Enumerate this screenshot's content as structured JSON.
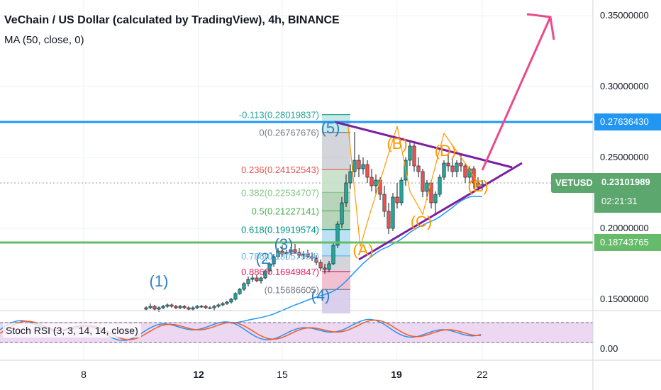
{
  "header": {
    "title": "VeChain / US Dollar (calculated by TradingView), 4h, BINANCE",
    "indicator": "MA (50, close, 0)"
  },
  "oscillator": {
    "label": "Stoch RSI (3, 3, 14, 14, close)",
    "axis_label": "0.00"
  },
  "price_axis": {
    "ticks": [
      "0.35000000",
      "0.30000000",
      "0.25000000",
      "0.20000000",
      "0.15000000"
    ],
    "resistance_label": "0.27636430",
    "support_label": "0.18743765",
    "symbol_tag": "VETUSD",
    "last_price": "0.23101989",
    "countdown": "02:21:31"
  },
  "time_axis": {
    "labels": [
      "8",
      "12",
      "15",
      "19",
      "22"
    ]
  },
  "colors": {
    "candle_up": "#26a69a",
    "candle_down": "#ef5350",
    "ma": "#2196f3",
    "resistance": "#2196f3",
    "support": "#66bb6a",
    "triangle": "#7b1fa2",
    "wave": "#ff9800",
    "arrow": "#e84c8b",
    "last_price": "#5ba76d",
    "stoch_bg": "#e1bee7"
  },
  "chart_data": {
    "type": "candlestick",
    "symbol": "VETUSD",
    "timeframe": "4h",
    "exchange": "BINANCE",
    "ylim": [
      0.14,
      0.365
    ],
    "y_ticks": [
      0.15,
      0.2,
      0.25,
      0.3,
      0.35
    ],
    "x_ticks": [
      "8",
      "12",
      "15",
      "19",
      "22"
    ],
    "resistance": 0.2763643,
    "support": 0.18743765,
    "last_price": 0.23101989,
    "fibonacci": [
      {
        "label": "-0.113(0.28019837)",
        "level": -0.113,
        "price": 0.28019837,
        "color": "#26a69a"
      },
      {
        "label": "0(0.26767676)",
        "level": 0,
        "price": 0.26767676,
        "color": "#787b86"
      },
      {
        "label": "0.236(0.24152543)",
        "level": 0.236,
        "price": 0.24152543,
        "color": "#ef5350"
      },
      {
        "label": "0.382(0.22534707)",
        "level": 0.382,
        "price": 0.22534707,
        "color": "#81c784"
      },
      {
        "label": "0.5(0.21227141)",
        "level": 0.5,
        "price": 0.21227141,
        "color": "#4caf50"
      },
      {
        "label": "0.618(0.19919574)",
        "level": 0.618,
        "price": 0.19919574,
        "color": "#009688"
      },
      {
        "label": "0.786(0.18057954)",
        "level": 0.786,
        "price": 0.18057954,
        "color": "#64b5f6"
      },
      {
        "label": "0.886(0.16949847)",
        "level": 0.886,
        "price": 0.16949847,
        "color": "#e91e63"
      },
      {
        "label": "(0.15686605)",
        "level": 1,
        "price": 0.15686605,
        "color": "#787b86"
      }
    ],
    "impulse_waves": [
      {
        "label": "(1)",
        "price": 0.162
      },
      {
        "label": "(2)",
        "price": 0.178
      },
      {
        "label": "(3)",
        "price": 0.188
      },
      {
        "label": "(4)",
        "price": 0.152
      },
      {
        "label": "(5)",
        "price": 0.27
      }
    ],
    "triangle_waves": [
      {
        "label": "(A)",
        "price": 0.184
      },
      {
        "label": "(B)",
        "price": 0.259
      },
      {
        "label": "(C)",
        "price": 0.204
      },
      {
        "label": "(D)",
        "price": 0.254
      },
      {
        "label": "(E)",
        "price": 0.229
      }
    ],
    "candles": [
      [
        0.143,
        0.145,
        0.142,
        0.144
      ],
      [
        0.144,
        0.147,
        0.143,
        0.145
      ],
      [
        0.145,
        0.146,
        0.142,
        0.143
      ],
      [
        0.143,
        0.145,
        0.141,
        0.144
      ],
      [
        0.144,
        0.146,
        0.143,
        0.145
      ],
      [
        0.145,
        0.147,
        0.144,
        0.146
      ],
      [
        0.146,
        0.147,
        0.144,
        0.145
      ],
      [
        0.145,
        0.146,
        0.143,
        0.144
      ],
      [
        0.144,
        0.146,
        0.143,
        0.145
      ],
      [
        0.145,
        0.146,
        0.143,
        0.144
      ],
      [
        0.144,
        0.145,
        0.142,
        0.143
      ],
      [
        0.143,
        0.145,
        0.142,
        0.144
      ],
      [
        0.144,
        0.146,
        0.143,
        0.145
      ],
      [
        0.145,
        0.146,
        0.144,
        0.145
      ],
      [
        0.145,
        0.146,
        0.143,
        0.144
      ],
      [
        0.144,
        0.145,
        0.143,
        0.144
      ],
      [
        0.144,
        0.146,
        0.142,
        0.145
      ],
      [
        0.145,
        0.147,
        0.144,
        0.146
      ],
      [
        0.146,
        0.148,
        0.145,
        0.147
      ],
      [
        0.147,
        0.149,
        0.146,
        0.148
      ],
      [
        0.148,
        0.151,
        0.147,
        0.15
      ],
      [
        0.15,
        0.155,
        0.149,
        0.154
      ],
      [
        0.154,
        0.158,
        0.153,
        0.157
      ],
      [
        0.157,
        0.162,
        0.156,
        0.161
      ],
      [
        0.161,
        0.166,
        0.159,
        0.164
      ],
      [
        0.164,
        0.168,
        0.162,
        0.165
      ],
      [
        0.165,
        0.167,
        0.162,
        0.163
      ],
      [
        0.163,
        0.166,
        0.161,
        0.165
      ],
      [
        0.165,
        0.171,
        0.164,
        0.17
      ],
      [
        0.17,
        0.176,
        0.168,
        0.175
      ],
      [
        0.175,
        0.182,
        0.173,
        0.18
      ],
      [
        0.18,
        0.186,
        0.178,
        0.184
      ],
      [
        0.184,
        0.188,
        0.18,
        0.182
      ],
      [
        0.182,
        0.185,
        0.178,
        0.183
      ],
      [
        0.183,
        0.187,
        0.181,
        0.185
      ],
      [
        0.185,
        0.189,
        0.182,
        0.183
      ],
      [
        0.183,
        0.186,
        0.179,
        0.181
      ],
      [
        0.181,
        0.184,
        0.178,
        0.182
      ],
      [
        0.182,
        0.185,
        0.179,
        0.18
      ],
      [
        0.18,
        0.183,
        0.177,
        0.179
      ],
      [
        0.179,
        0.181,
        0.174,
        0.176
      ],
      [
        0.176,
        0.178,
        0.17,
        0.172
      ],
      [
        0.172,
        0.175,
        0.168,
        0.171
      ],
      [
        0.171,
        0.177,
        0.169,
        0.175
      ],
      [
        0.175,
        0.19,
        0.174,
        0.188
      ],
      [
        0.188,
        0.205,
        0.186,
        0.203
      ],
      [
        0.203,
        0.222,
        0.2,
        0.218
      ],
      [
        0.218,
        0.238,
        0.215,
        0.232
      ],
      [
        0.232,
        0.245,
        0.228,
        0.24
      ],
      [
        0.24,
        0.268,
        0.236,
        0.248
      ],
      [
        0.248,
        0.252,
        0.236,
        0.242
      ],
      [
        0.242,
        0.25,
        0.238,
        0.245
      ],
      [
        0.245,
        0.248,
        0.232,
        0.236
      ],
      [
        0.236,
        0.242,
        0.226,
        0.23
      ],
      [
        0.23,
        0.238,
        0.224,
        0.234
      ],
      [
        0.234,
        0.236,
        0.22,
        0.224
      ],
      [
        0.224,
        0.23,
        0.208,
        0.212
      ],
      [
        0.212,
        0.218,
        0.196,
        0.2
      ],
      [
        0.2,
        0.225,
        0.198,
        0.222
      ],
      [
        0.222,
        0.232,
        0.214,
        0.218
      ],
      [
        0.218,
        0.236,
        0.216,
        0.234
      ],
      [
        0.234,
        0.25,
        0.23,
        0.248
      ],
      [
        0.248,
        0.262,
        0.244,
        0.258
      ],
      [
        0.258,
        0.26,
        0.24,
        0.244
      ],
      [
        0.244,
        0.25,
        0.236,
        0.24
      ],
      [
        0.24,
        0.242,
        0.222,
        0.226
      ],
      [
        0.226,
        0.234,
        0.22,
        0.232
      ],
      [
        0.232,
        0.234,
        0.214,
        0.218
      ],
      [
        0.218,
        0.226,
        0.21,
        0.224
      ],
      [
        0.224,
        0.238,
        0.222,
        0.236
      ],
      [
        0.236,
        0.248,
        0.234,
        0.246
      ],
      [
        0.246,
        0.252,
        0.24,
        0.244
      ],
      [
        0.244,
        0.25,
        0.236,
        0.24
      ],
      [
        0.24,
        0.248,
        0.236,
        0.246
      ],
      [
        0.246,
        0.252,
        0.24,
        0.244
      ],
      [
        0.244,
        0.246,
        0.232,
        0.236
      ],
      [
        0.236,
        0.244,
        0.232,
        0.242
      ],
      [
        0.242,
        0.244,
        0.228,
        0.232
      ],
      [
        0.232,
        0.236,
        0.226,
        0.229
      ],
      [
        0.229,
        0.234,
        0.227,
        0.231
      ]
    ]
  }
}
